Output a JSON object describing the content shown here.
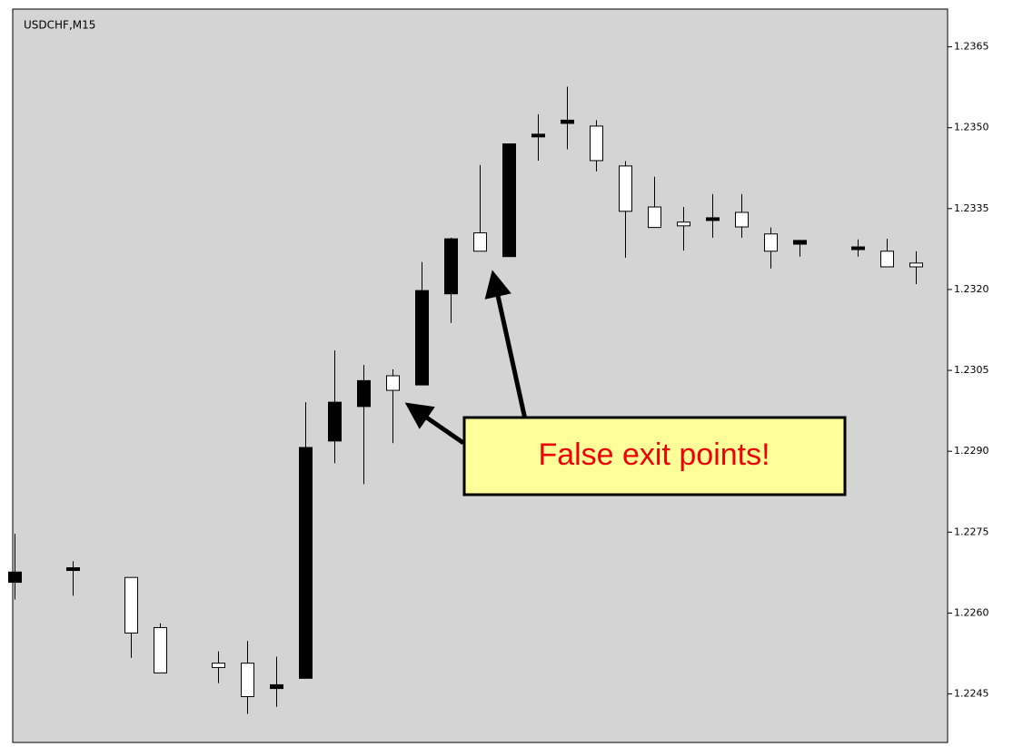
{
  "chart_data": {
    "type": "candlestick",
    "title": "USDCHF,M15",
    "annotation": "False exit points!",
    "categories": [
      null,
      null,
      null,
      null,
      null,
      null,
      null,
      null,
      null,
      null,
      null,
      null,
      null,
      null,
      null,
      null,
      null,
      null,
      null,
      null,
      null,
      null,
      null,
      null,
      null,
      null,
      null,
      null,
      null,
      null,
      null,
      null
    ],
    "open": [
      1.22676,
      null,
      1.22684,
      null,
      1.22563,
      1.22489,
      null,
      1.22499,
      1.22445,
      1.22467,
      1.22907,
      1.22991,
      1.23031,
      1.23013,
      1.23198,
      1.23294,
      1.23271,
      1.2347,
      1.23488,
      1.23514,
      1.23439,
      1.23345,
      1.23315,
      1.23318,
      1.23333,
      1.23316,
      1.23271,
      1.23291,
      null,
      1.23279,
      1.23242,
      1.23242
    ],
    "high": [
      1.22747,
      null,
      1.22696,
      null,
      1.22666,
      1.22581,
      null,
      1.22529,
      1.22548,
      1.22519,
      1.22991,
      1.23087,
      1.2306,
      1.23052,
      1.23251,
      1.23296,
      1.23431,
      1.2347,
      1.23525,
      1.23576,
      1.23514,
      1.23438,
      1.23409,
      1.23353,
      1.23377,
      1.23377,
      1.23315,
      1.23291,
      null,
      1.23293,
      1.23294,
      1.23271
    ],
    "low": [
      1.22625,
      null,
      1.22632,
      null,
      1.22517,
      1.22489,
      null,
      1.2247,
      1.22413,
      1.22426,
      1.22479,
      1.22878,
      1.22839,
      1.22915,
      1.23023,
      1.23138,
      1.23271,
      1.23261,
      1.23439,
      1.2346,
      1.23419,
      1.23259,
      1.23315,
      1.23272,
      1.23296,
      1.23296,
      1.23239,
      1.23261,
      null,
      1.23261,
      1.23242,
      1.2321
    ],
    "close": [
      1.22657,
      null,
      1.22679,
      null,
      1.22666,
      1.22573,
      null,
      1.22507,
      1.22507,
      1.2246,
      1.22479,
      1.22919,
      1.22983,
      1.2304,
      1.23023,
      1.23192,
      1.23305,
      1.23261,
      1.23483,
      1.23508,
      1.23503,
      1.23429,
      1.23353,
      1.23325,
      1.23328,
      1.23343,
      1.23303,
      1.23284,
      null,
      1.23274,
      1.23271,
      1.23249
    ],
    "up_color": "#ffffff",
    "down_color": "#000000",
    "ylim": [
      1.2236,
      1.2372
    ],
    "yticks": [
      1.2365,
      {
        "value": 1.235,
        "label": "1.2350"
      },
      1.2335,
      {
        "value": 1.232,
        "label": "1.2320"
      },
      1.2305,
      {
        "value": 1.229,
        "label": "1.2290"
      },
      1.2275,
      {
        "value": 1.226,
        "label": "1.2260"
      },
      1.2245
    ],
    "y_axis_side": "right"
  }
}
